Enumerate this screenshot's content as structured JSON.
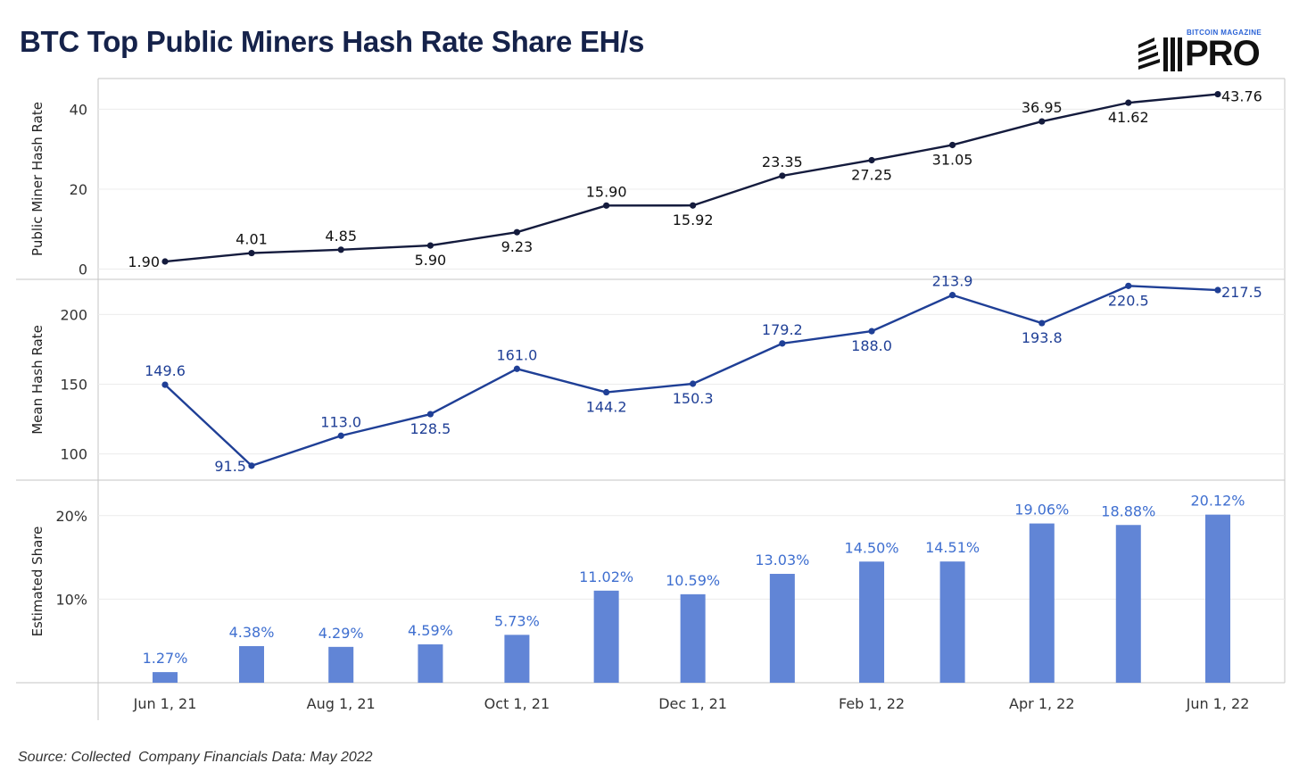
{
  "title": "BTC Top Public Miners Hash Rate Share EH/s",
  "logo": {
    "small": "BITCOIN MAGAZINE",
    "big": "PRO"
  },
  "source": "Source: Collected  Company Financials Data: May 2022",
  "colors": {
    "title": "#15224a",
    "line_top": "#141b3d",
    "line_mid": "#1f3f96",
    "bars": "#6185d6",
    "bar_labels": "#3f6fd0",
    "grid": "#ececec",
    "axis": "#c4c4c4"
  },
  "chart_data": [
    {
      "type": "line",
      "ylabel": "Public Miner Hash Rate",
      "ylim": [
        -1,
        45
      ],
      "yticks": [
        0,
        20,
        40
      ],
      "x": [
        "2021-06-01",
        "2021-07-01",
        "2021-08-01",
        "2021-09-01",
        "2021-10-01",
        "2021-11-01",
        "2021-12-01",
        "2022-01-01",
        "2022-02-01",
        "2022-03-01",
        "2022-04-01",
        "2022-05-01",
        "2022-06-01"
      ],
      "values": [
        1.9,
        4.01,
        4.85,
        5.9,
        9.23,
        15.9,
        15.92,
        23.35,
        27.25,
        31.05,
        36.95,
        41.62,
        43.76
      ],
      "labels": [
        "1.90",
        "4.01",
        "4.85",
        "5.90",
        "9.23",
        "15.90",
        "15.92",
        "23.35",
        "27.25",
        "31.05",
        "36.95",
        "41.62",
        "43.76"
      ],
      "label_pos": [
        "left",
        "above",
        "above",
        "below",
        "below",
        "above",
        "below",
        "above",
        "below",
        "below",
        "above",
        "below",
        "right"
      ]
    },
    {
      "type": "line",
      "ylabel": "Mean Hash Rate",
      "ylim": [
        85,
        222
      ],
      "yticks": [
        100,
        150,
        200
      ],
      "x": [
        "2021-06-01",
        "2021-07-01",
        "2021-08-01",
        "2021-09-01",
        "2021-10-01",
        "2021-11-01",
        "2021-12-01",
        "2022-01-01",
        "2022-02-01",
        "2022-03-01",
        "2022-04-01",
        "2022-05-01",
        "2022-06-01"
      ],
      "values": [
        149.6,
        91.5,
        113.0,
        128.5,
        161.0,
        144.2,
        150.3,
        179.2,
        188.0,
        213.9,
        193.8,
        220.5,
        217.5
      ],
      "labels": [
        "149.6",
        "91.5",
        "113.0",
        "128.5",
        "161.0",
        "144.2",
        "150.3",
        "179.2",
        "188.0",
        "213.9",
        "193.8",
        "220.5",
        "217.5"
      ],
      "label_pos": [
        "above",
        "left",
        "above",
        "below",
        "above",
        "below",
        "below",
        "above",
        "below",
        "above",
        "below",
        "below",
        "right"
      ]
    },
    {
      "type": "bar",
      "ylabel": "Estimated Share",
      "ylim": [
        0,
        23.5
      ],
      "yticks": [
        10,
        20
      ],
      "ytick_labels": [
        "10%",
        "20%"
      ],
      "x": [
        "2021-06-01",
        "2021-07-01",
        "2021-08-01",
        "2021-09-01",
        "2021-10-01",
        "2021-11-01",
        "2021-12-01",
        "2022-01-01",
        "2022-02-01",
        "2022-03-01",
        "2022-04-01",
        "2022-05-01",
        "2022-06-01"
      ],
      "values": [
        1.27,
        4.38,
        4.29,
        4.59,
        5.73,
        11.02,
        10.59,
        13.03,
        14.5,
        14.51,
        19.06,
        18.88,
        20.12
      ],
      "labels": [
        "1.27%",
        "4.38%",
        "4.29%",
        "4.59%",
        "5.73%",
        "11.02%",
        "10.59%",
        "13.03%",
        "14.50%",
        "14.51%",
        "19.06%",
        "18.88%",
        "20.12%"
      ],
      "xtick_labels": [
        "Jun 1, 21",
        "Aug 1, 21",
        "Oct 1, 21",
        "Dec 1, 21",
        "Feb 1, 22",
        "Apr 1, 22",
        "Jun 1, 22"
      ],
      "xtick_dates": [
        "2021-06-01",
        "2021-08-01",
        "2021-10-01",
        "2021-12-01",
        "2022-02-01",
        "2022-04-01",
        "2022-06-01"
      ]
    }
  ]
}
